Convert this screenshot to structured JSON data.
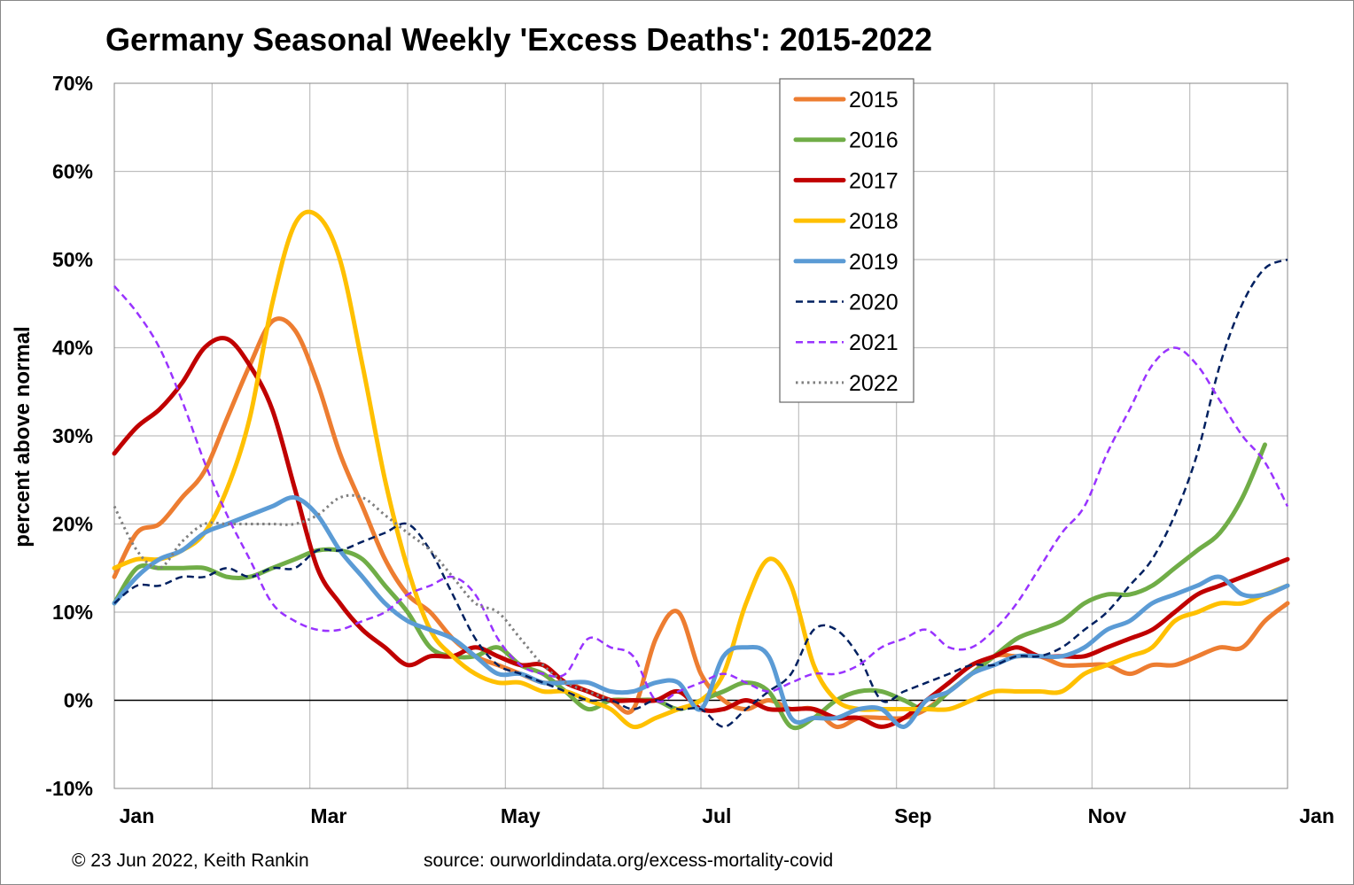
{
  "chart_data": {
    "type": "line",
    "title": "Germany Seasonal Weekly 'Excess Deaths': 2015-2022",
    "ylabel": "percent above normal",
    "xlabel": "",
    "ylim": [
      -10,
      70
    ],
    "y_ticks": [
      -10,
      0,
      10,
      20,
      30,
      40,
      50,
      60,
      70
    ],
    "y_tick_labels": [
      "-10%",
      "0%",
      "10%",
      "20%",
      "30%",
      "40%",
      "50%",
      "60%",
      "70%"
    ],
    "xlim": [
      1,
      53
    ],
    "x_tick_labels": [
      {
        "label": "Jan",
        "week": 2
      },
      {
        "label": "Mar",
        "week": 10.5
      },
      {
        "label": "May",
        "week": 19
      },
      {
        "label": "Jul",
        "week": 27.7
      },
      {
        "label": "Sep",
        "week": 36.4
      },
      {
        "label": "Nov",
        "week": 45
      },
      {
        "label": "Jan",
        "week": 54.3
      }
    ],
    "gridlines": true,
    "legend_position": "top-center",
    "series": [
      {
        "name": "2015",
        "color": "#ED7D31",
        "style": "solid",
        "width": 5,
        "values": [
          14,
          19,
          20,
          23,
          26,
          32,
          38,
          43,
          42,
          36,
          28,
          22,
          16,
          12,
          10,
          7,
          5,
          4,
          3,
          2,
          2,
          1,
          0,
          -1,
          7,
          10,
          3,
          0,
          -1,
          0,
          -1,
          -1,
          -3,
          -2,
          -2,
          -2,
          -1,
          1,
          3,
          5,
          5,
          5,
          4,
          4,
          4,
          3,
          4,
          4,
          5,
          6,
          6,
          9,
          11
        ]
      },
      {
        "name": "2016",
        "color": "#70AD47",
        "style": "solid",
        "width": 5,
        "values": [
          11,
          15,
          15,
          15,
          15,
          14,
          14,
          15,
          16,
          17,
          17,
          16,
          13,
          10,
          6,
          5,
          5,
          6,
          4,
          3,
          1,
          -1,
          0,
          0,
          0,
          -1,
          0,
          1,
          2,
          1,
          -3,
          -2,
          0,
          1,
          1,
          0,
          -1,
          1,
          3,
          5,
          7,
          8,
          9,
          11,
          12,
          12,
          13,
          15,
          17,
          19,
          23,
          29
        ]
      },
      {
        "name": "2017",
        "color": "#C00000",
        "style": "solid",
        "width": 5,
        "values": [
          28,
          31,
          33,
          36,
          40,
          41,
          38,
          33,
          24,
          15,
          11,
          8,
          6,
          4,
          5,
          5,
          6,
          5,
          4,
          4,
          2,
          1,
          0,
          0,
          0,
          1,
          -1,
          -1,
          0,
          -1,
          -1,
          -1,
          -2,
          -2,
          -3,
          -2,
          0,
          2,
          4,
          5,
          6,
          5,
          5,
          5,
          6,
          7,
          8,
          10,
          12,
          13,
          14,
          15,
          16
        ]
      },
      {
        "name": "2018",
        "color": "#FFC000",
        "style": "solid",
        "width": 5,
        "values": [
          15,
          16,
          16,
          17,
          19,
          24,
          32,
          45,
          54,
          55,
          50,
          38,
          25,
          15,
          8,
          5,
          3,
          2,
          2,
          1,
          1,
          0,
          -1,
          -3,
          -2,
          -1,
          0,
          3,
          11,
          16,
          13,
          4,
          0,
          -1,
          -1,
          -1,
          -1,
          -1,
          0,
          1,
          1,
          1,
          1,
          3,
          4,
          5,
          6,
          9,
          10,
          11,
          11,
          12,
          13
        ]
      },
      {
        "name": "2019",
        "color": "#5B9BD5",
        "style": "solid",
        "width": 5,
        "values": [
          11,
          14,
          16,
          17,
          19,
          20,
          21,
          22,
          23,
          21,
          17,
          14,
          11,
          9,
          8,
          7,
          5,
          3,
          3,
          2,
          2,
          2,
          1,
          1,
          2,
          2,
          -1,
          5,
          6,
          5,
          -2,
          -2,
          -2,
          -1,
          -1,
          -3,
          0,
          1,
          3,
          4,
          5,
          5,
          5,
          6,
          8,
          9,
          11,
          12,
          13,
          14,
          12,
          12,
          13
        ]
      },
      {
        "name": "2020",
        "color": "#002060",
        "style": "dash",
        "width": 2.5,
        "values": [
          11,
          13,
          13,
          14,
          14,
          15,
          14,
          15,
          15,
          17,
          17,
          18,
          19,
          20,
          17,
          12,
          7,
          4,
          3,
          2,
          1,
          0,
          0,
          -1,
          0,
          -1,
          -1,
          -3,
          -1,
          1,
          3,
          8,
          8,
          5,
          0,
          1,
          2,
          3,
          4,
          4,
          5,
          5,
          6,
          8,
          10,
          13,
          16,
          21,
          28,
          38,
          45,
          49,
          50
        ]
      },
      {
        "name": "2021",
        "color": "#9933FF",
        "style": "dash",
        "width": 2.5,
        "values": [
          47,
          44,
          40,
          34,
          27,
          21,
          16,
          11,
          9,
          8,
          8,
          9,
          10,
          12,
          13,
          14,
          12,
          7,
          4,
          3,
          3,
          7,
          6,
          5,
          0,
          1,
          2,
          3,
          2,
          1,
          2,
          3,
          3,
          4,
          6,
          7,
          8,
          6,
          6,
          8,
          11,
          15,
          19,
          22,
          28,
          33,
          38,
          40,
          38,
          34,
          30,
          27,
          22
        ]
      },
      {
        "name": "2022",
        "color": "#808080",
        "style": "dot",
        "width": 3,
        "values": [
          22,
          17,
          15,
          18,
          20,
          20,
          20,
          20,
          20,
          21,
          23,
          23,
          21,
          19,
          17,
          14,
          11,
          10,
          7,
          4,
          2,
          1,
          0
        ]
      }
    ]
  },
  "footer": {
    "copyright": "© 23 Jun 2022, Keith Rankin",
    "source": "source: ourworldindata.org/excess-mortality-covid"
  }
}
